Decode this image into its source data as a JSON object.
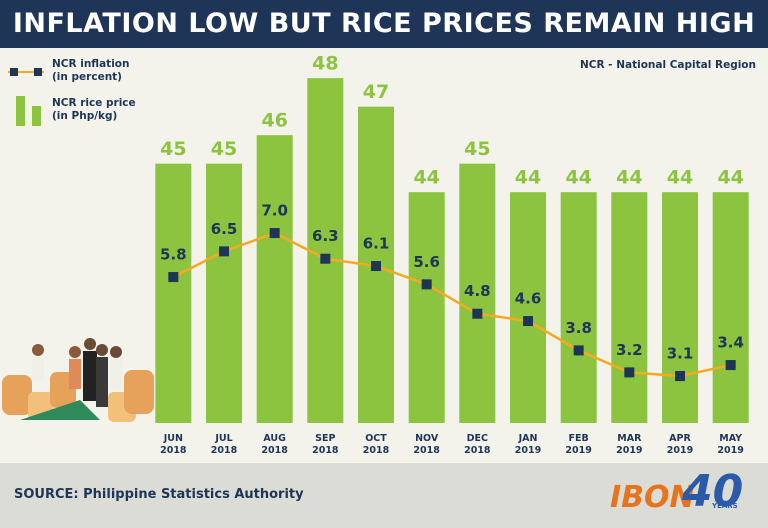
{
  "chart_data": {
    "type": "bar",
    "title": "INFLATION LOW BUT RICE PRICES REMAIN HIGH",
    "annotation": "NCR - National Capital Region",
    "source": "SOURCE: Philippine Statistics Authority",
    "categories": [
      "JUN 2018",
      "JUL 2018",
      "AUG 2018",
      "SEP 2018",
      "OCT 2018",
      "NOV 2018",
      "DEC 2018",
      "JAN 2019",
      "FEB 2019",
      "MAR 2019",
      "APR 2019",
      "MAY 2019"
    ],
    "series": [
      {
        "name": "NCR inflation (in percent)",
        "type": "line",
        "axis": "y2",
        "color": "#f7a823",
        "marker_color": "#1e3557",
        "values": [
          5.8,
          6.5,
          7,
          6.3,
          6.1,
          5.6,
          4.8,
          4.6,
          3.8,
          3.2,
          3.1,
          3.4
        ],
        "value_labels": [
          "5.8",
          "6.5",
          "7.0",
          "6.3",
          "6.1",
          "5.6",
          "4.8",
          "4.6",
          "3.8",
          "3.2",
          "3.1",
          "3.4"
        ]
      },
      {
        "name": "NCR rice price (in Php/kg)",
        "type": "bar",
        "color": "#8cc43f",
        "values": [
          45,
          45,
          46,
          48,
          47,
          44,
          45,
          44,
          44,
          44,
          44,
          44
        ]
      }
    ],
    "ylim": [
      35.9,
      49.9
    ],
    "y2lim": [
      1.82,
      12.7
    ],
    "grid": false
  },
  "logo": {
    "name": "IBON",
    "anniversary": "40",
    "tag": "YEARS"
  }
}
